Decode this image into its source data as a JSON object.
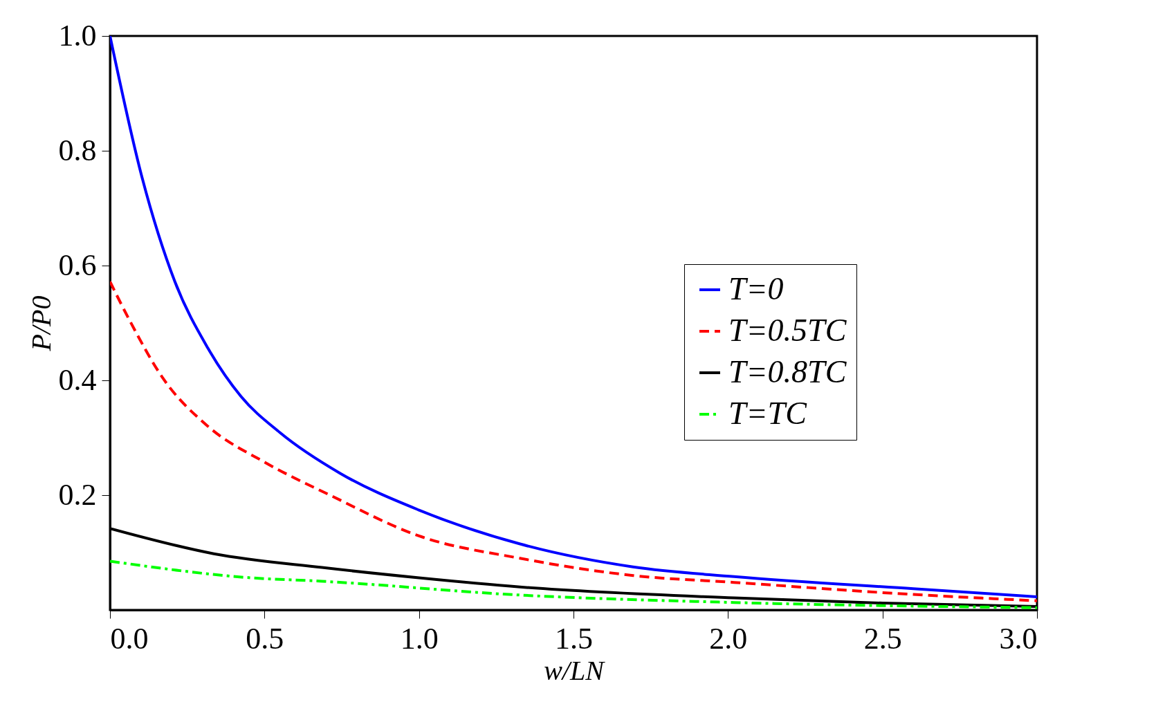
{
  "chart_data": {
    "type": "line",
    "xlabel": "w/LN",
    "ylabel": "P/P0",
    "xlim": [
      0,
      3
    ],
    "ylim": [
      0,
      1
    ],
    "xticks": [
      {
        "value": 0,
        "label": "0.0"
      },
      {
        "value": 0.5,
        "label": "0.5"
      },
      {
        "value": 1,
        "label": "1.0"
      },
      {
        "value": 1.5,
        "label": "1.5"
      },
      {
        "value": 2,
        "label": "2.0"
      },
      {
        "value": 2.5,
        "label": "2.5"
      },
      {
        "value": 3,
        "label": "3.0"
      }
    ],
    "yticks": [
      {
        "value": 0.2,
        "label": "0.2"
      },
      {
        "value": 0.4,
        "label": "0.4"
      },
      {
        "value": 0.6,
        "label": "0.6"
      },
      {
        "value": 0.8,
        "label": "0.8"
      },
      {
        "value": 1,
        "label": "1.0"
      }
    ],
    "legend": "right",
    "grid": false,
    "series": [
      {
        "name": "T=0",
        "color": "#0000ff",
        "line_style": "solid",
        "x": [
          0,
          0.104,
          0.21,
          0.317,
          0.424,
          0.55,
          0.745,
          1.0,
          1.327,
          1.693,
          2.02,
          2.6,
          3.0
        ],
        "values": [
          1.0,
          0.753,
          0.572,
          0.456,
          0.372,
          0.309,
          0.238,
          0.174,
          0.115,
          0.075,
          0.058,
          0.037,
          0.023
        ]
      },
      {
        "name": "T=0.5TC",
        "color": "#ff0000",
        "line_style": "dashed",
        "x": [
          0,
          0.064,
          0.171,
          0.317,
          0.502,
          0.716,
          1.0,
          1.327,
          1.693,
          2.02,
          2.6,
          3.0
        ],
        "values": [
          0.572,
          0.504,
          0.404,
          0.32,
          0.257,
          0.199,
          0.129,
          0.09,
          0.06,
          0.048,
          0.027,
          0.016
        ]
      },
      {
        "name": "T=0.8TC",
        "color": "#000000",
        "line_style": "solid",
        "x": [
          0,
          0.336,
          0.686,
          1.0,
          1.327,
          2.02,
          2.5,
          3.0
        ],
        "values": [
          0.142,
          0.098,
          0.074,
          0.056,
          0.04,
          0.021,
          0.012,
          0.006
        ]
      },
      {
        "name": "T=TC",
        "color": "#00ff00",
        "line_style": "dashdot",
        "x": [
          0,
          0.457,
          0.686,
          1.327,
          2.02,
          3.0
        ],
        "values": [
          0.085,
          0.056,
          0.05,
          0.026,
          0.013,
          0.004
        ]
      }
    ]
  }
}
